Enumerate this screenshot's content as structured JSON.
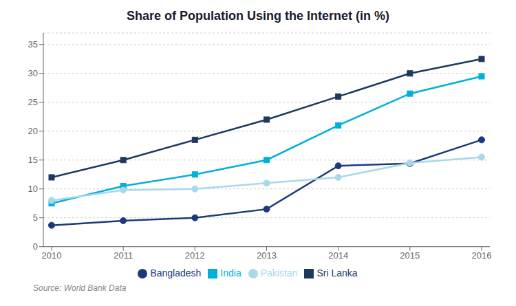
{
  "chart_data": {
    "type": "line",
    "title": "Share of Population Using the Internet (in %)",
    "annotations": [
      "Source: World Bank Data"
    ],
    "x": [
      2010,
      2011,
      2012,
      2013,
      2014,
      2015,
      2016
    ],
    "series": [
      {
        "name": "Sri Lanka",
        "color": "#1c3a5e",
        "marker": "square",
        "values": [
          12.0,
          15.0,
          18.5,
          22.0,
          26.0,
          30.0,
          32.5
        ]
      },
      {
        "name": "India",
        "color": "#00b0d8",
        "marker": "square",
        "values": [
          7.5,
          10.5,
          12.5,
          15.0,
          21.0,
          26.5,
          29.5
        ]
      },
      {
        "name": "Bangladesh",
        "color": "#1a3a7a",
        "marker": "circle",
        "values": [
          3.7,
          4.5,
          5.0,
          6.5,
          14.0,
          14.4,
          18.5
        ]
      },
      {
        "name": "Pakistan",
        "color": "#a8d8ea",
        "marker": "circle",
        "values": [
          8.0,
          9.8,
          10.0,
          11.0,
          12.0,
          14.5,
          15.5
        ]
      }
    ],
    "xlim": [
      2010,
      2016
    ],
    "xticks": [
      2010,
      2011,
      2012,
      2013,
      2014,
      2015,
      2016
    ],
    "ylim": [
      0,
      37
    ],
    "yticks": [
      0,
      5,
      10,
      15,
      20,
      25,
      30,
      35
    ],
    "grid": true,
    "legend": "bottom"
  }
}
